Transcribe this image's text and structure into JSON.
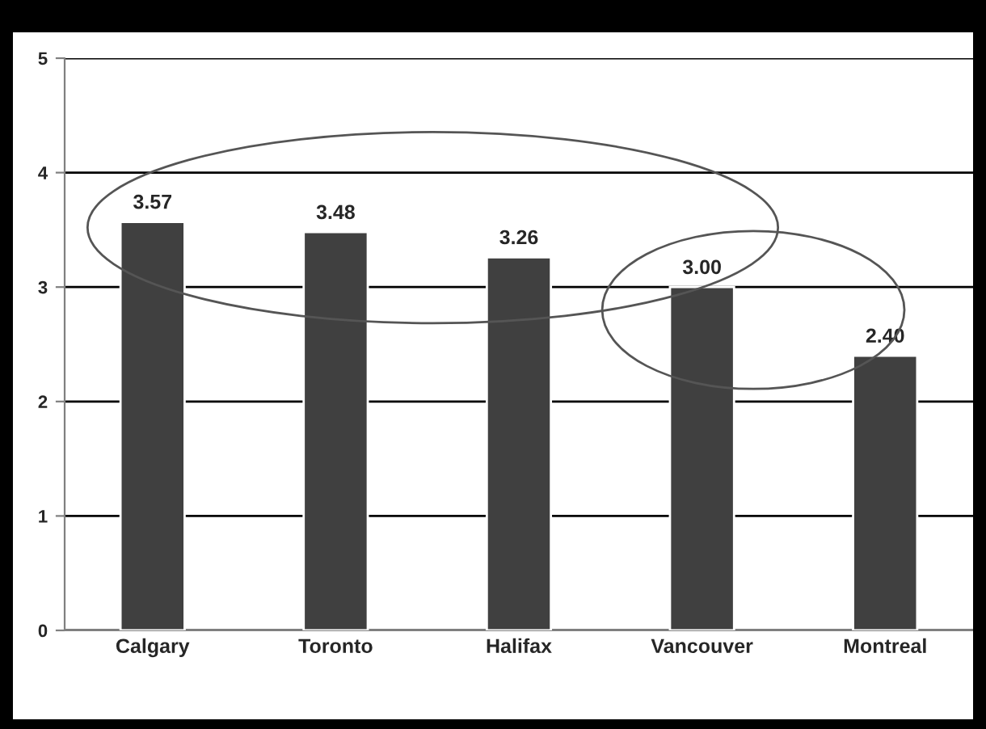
{
  "chart_data": {
    "type": "bar",
    "categories": [
      "Calgary",
      "Toronto",
      "Halifax",
      "Vancouver",
      "Montreal"
    ],
    "values": [
      3.57,
      3.48,
      3.26,
      3.0,
      2.4
    ],
    "value_labels": [
      "3.57",
      "3.48",
      "3.26",
      "3.00",
      "2.40"
    ],
    "color": "#404040",
    "ylim": [
      0,
      5
    ],
    "yticks": [
      0,
      1,
      2,
      3,
      4,
      5
    ],
    "grid": "y"
  }
}
